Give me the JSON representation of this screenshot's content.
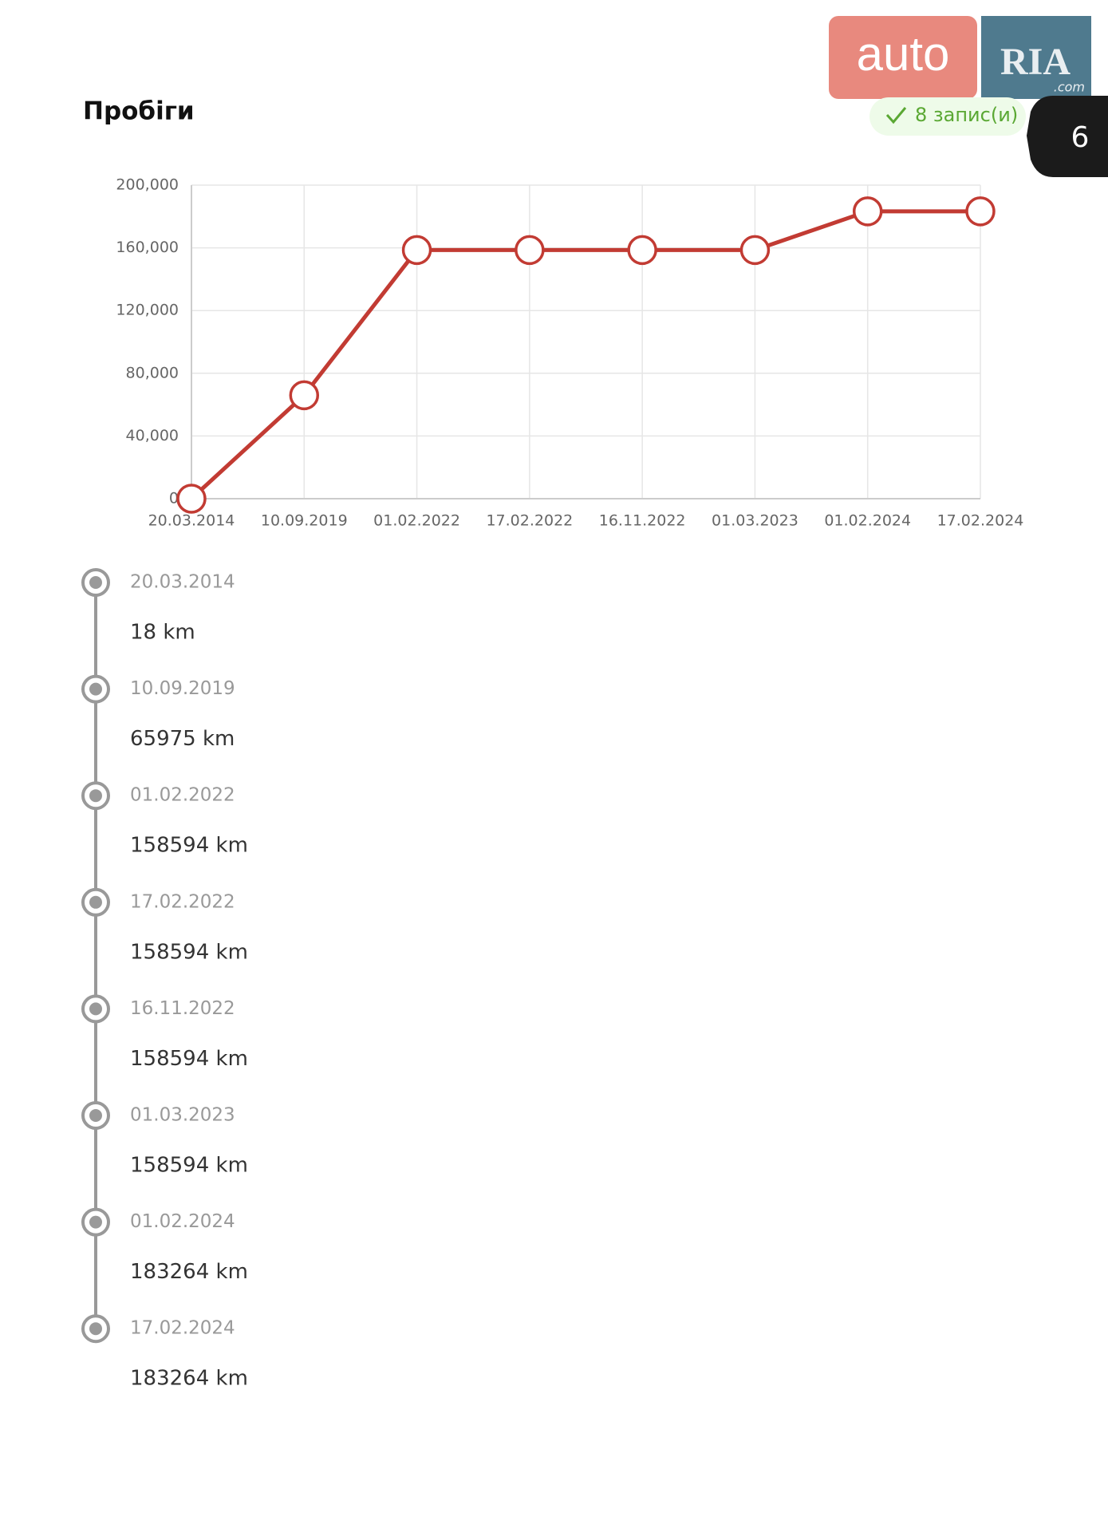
{
  "header": {
    "title": "Пробіги",
    "badge": "8 запис(и)",
    "logo": {
      "left": "auto",
      "right": "RIA",
      "suffix": ".com"
    },
    "page": "6"
  },
  "chart_data": {
    "type": "line",
    "categories": [
      "20.03.2014",
      "10.09.2019",
      "01.02.2022",
      "17.02.2022",
      "16.11.2022",
      "01.03.2023",
      "01.02.2024",
      "17.02.2024"
    ],
    "series": [
      {
        "color": "#c23b33",
        "values": [
          18,
          65975,
          158594,
          158594,
          158594,
          158594,
          183264,
          183264
        ]
      }
    ],
    "ylim": [
      0,
      200000
    ],
    "yticks": [
      0,
      {
        "value": 40000,
        "label": "40,000"
      },
      {
        "value": 80000,
        "label": "80,000"
      },
      {
        "value": 120000,
        "label": "120,000"
      },
      {
        "value": 160000,
        "label": "160,000"
      },
      {
        "value": 200000,
        "label": "200,000"
      }
    ],
    "grid": true
  },
  "timeline": [
    {
      "date": "20.03.2014",
      "mileage": "18 km"
    },
    {
      "date": "10.09.2019",
      "mileage": "65975 km"
    },
    {
      "date": "01.02.2022",
      "mileage": "158594 km"
    },
    {
      "date": "17.02.2022",
      "mileage": "158594 km"
    },
    {
      "date": "16.11.2022",
      "mileage": "158594 km"
    },
    {
      "date": "01.03.2023",
      "mileage": "158594 km"
    },
    {
      "date": "01.02.2024",
      "mileage": "183264 km"
    },
    {
      "date": "17.02.2024",
      "mileage": "183264 km"
    }
  ]
}
